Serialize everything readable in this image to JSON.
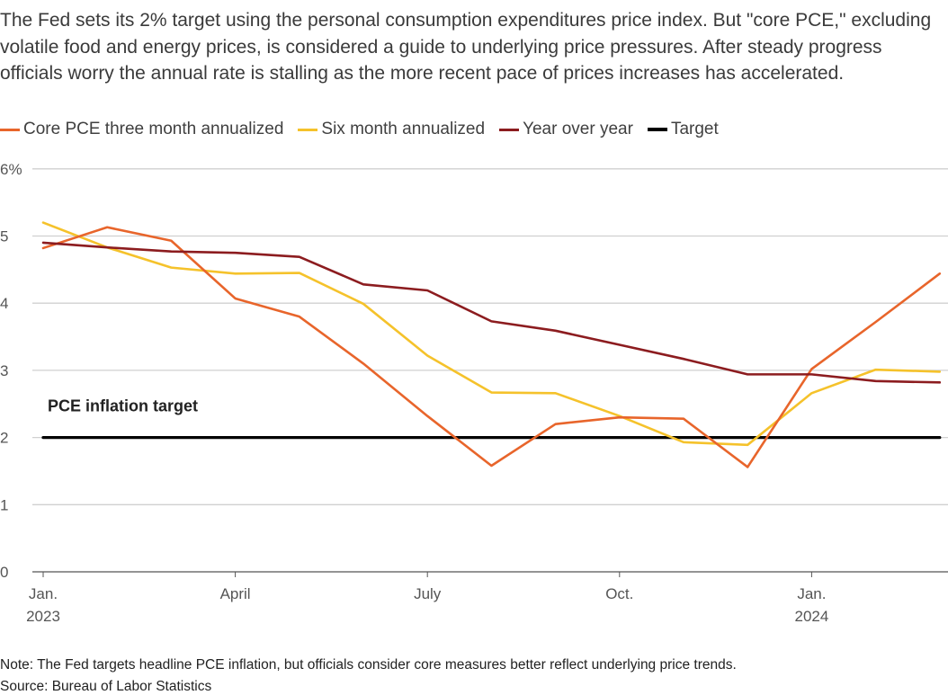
{
  "intro": "The Fed sets its 2% target using the personal consumption expenditures price index. But \"core PCE,\" excluding volatile food and energy prices, is considered a guide to underlying price pressures. After steady progress officials worry the annual rate is stalling as the more recent pace of prices increases has accelerated.",
  "note": "Note: The Fed targets headline PCE inflation, but officials consider core measures better reflect underlying price trends.",
  "source": "Source: Bureau of Labor Statistics",
  "chart_data": {
    "type": "line",
    "ylim": [
      0,
      6
    ],
    "yticks": [
      0,
      1,
      2,
      3,
      4,
      5,
      6
    ],
    "ytick_labels": [
      "0",
      "1",
      "2",
      "3",
      "4",
      "5",
      "6%"
    ],
    "xticks": [
      {
        "month": 0,
        "label": "Jan.",
        "sublabel": "2023"
      },
      {
        "month": 3,
        "label": "April",
        "sublabel": ""
      },
      {
        "month": 6,
        "label": "July",
        "sublabel": ""
      },
      {
        "month": 9,
        "label": "Oct.",
        "sublabel": ""
      },
      {
        "month": 12,
        "label": "Jan.",
        "sublabel": "2024"
      }
    ],
    "x": [
      "2023-01",
      "2023-02",
      "2023-03",
      "2023-04",
      "2023-05",
      "2023-06",
      "2023-07",
      "2023-08",
      "2023-09",
      "2023-10",
      "2023-11",
      "2023-12",
      "2024-01",
      "2024-02",
      "2024-03"
    ],
    "series": [
      {
        "name": "Core PCE three month annualized",
        "color": "#e8652b",
        "values": [
          4.82,
          5.13,
          4.93,
          4.07,
          3.8,
          3.1,
          2.32,
          1.58,
          2.2,
          2.3,
          2.28,
          1.56,
          3.02,
          3.72,
          4.44
        ]
      },
      {
        "name": "Six month annualized",
        "color": "#f5c22b",
        "values": [
          5.2,
          4.83,
          4.53,
          4.44,
          4.45,
          3.99,
          3.22,
          2.67,
          2.66,
          2.32,
          1.93,
          1.89,
          2.66,
          3.01,
          2.98
        ]
      },
      {
        "name": "Year over year",
        "color": "#8c1c1f",
        "values": [
          4.9,
          4.83,
          4.77,
          4.75,
          4.69,
          4.28,
          4.19,
          3.73,
          3.59,
          3.38,
          3.17,
          2.94,
          2.94,
          2.84,
          2.82
        ]
      },
      {
        "name": "Target",
        "color": "#000000",
        "values": [
          2,
          2,
          2,
          2,
          2,
          2,
          2,
          2,
          2,
          2,
          2,
          2,
          2,
          2,
          2
        ]
      }
    ],
    "annotation": "PCE inflation target"
  }
}
